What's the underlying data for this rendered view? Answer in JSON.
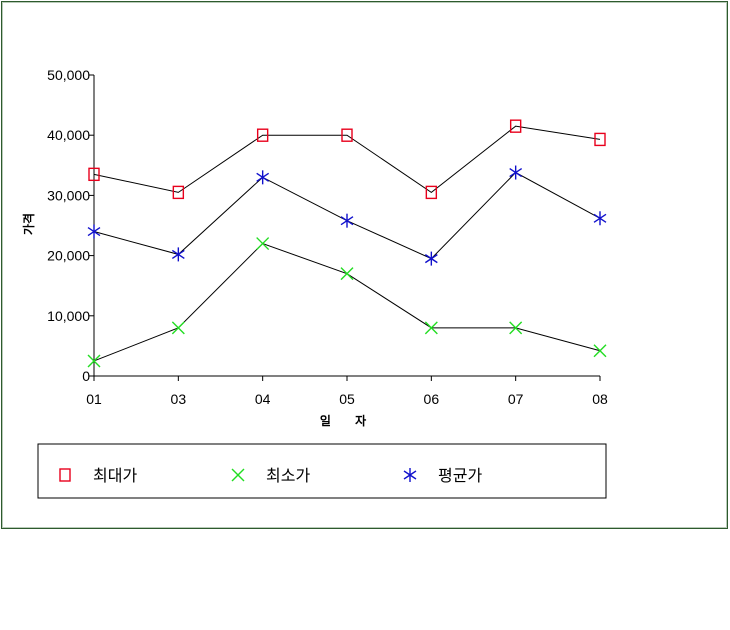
{
  "chart_data": {
    "type": "line",
    "title": "",
    "xlabel": "일 자",
    "ylabel": "가격",
    "categories": [
      "01",
      "03",
      "04",
      "05",
      "06",
      "07",
      "08"
    ],
    "ylim": [
      0,
      50000
    ],
    "yticks": [
      0,
      10000,
      20000,
      30000,
      40000,
      50000
    ],
    "ytick_labels": [
      "0",
      "10,000",
      "20,000",
      "30,000",
      "40,000",
      "50,000"
    ],
    "grid": false,
    "legend_position": "bottom",
    "series": [
      {
        "name": "최대가",
        "values": [
          33500,
          30500,
          40000,
          40000,
          30500,
          41500,
          39300
        ],
        "marker": "square",
        "marker_color": "#e8001c",
        "line_color": "#000000"
      },
      {
        "name": "최소가",
        "values": [
          2500,
          8000,
          22000,
          17000,
          8000,
          8000,
          4200
        ],
        "marker": "x",
        "marker_color": "#22dd22",
        "line_color": "#000000"
      },
      {
        "name": "평균가",
        "values": [
          24000,
          20200,
          33000,
          25800,
          19500,
          33800,
          26200
        ],
        "marker": "star",
        "marker_color": "#1010cc",
        "line_color": "#000000"
      }
    ]
  }
}
